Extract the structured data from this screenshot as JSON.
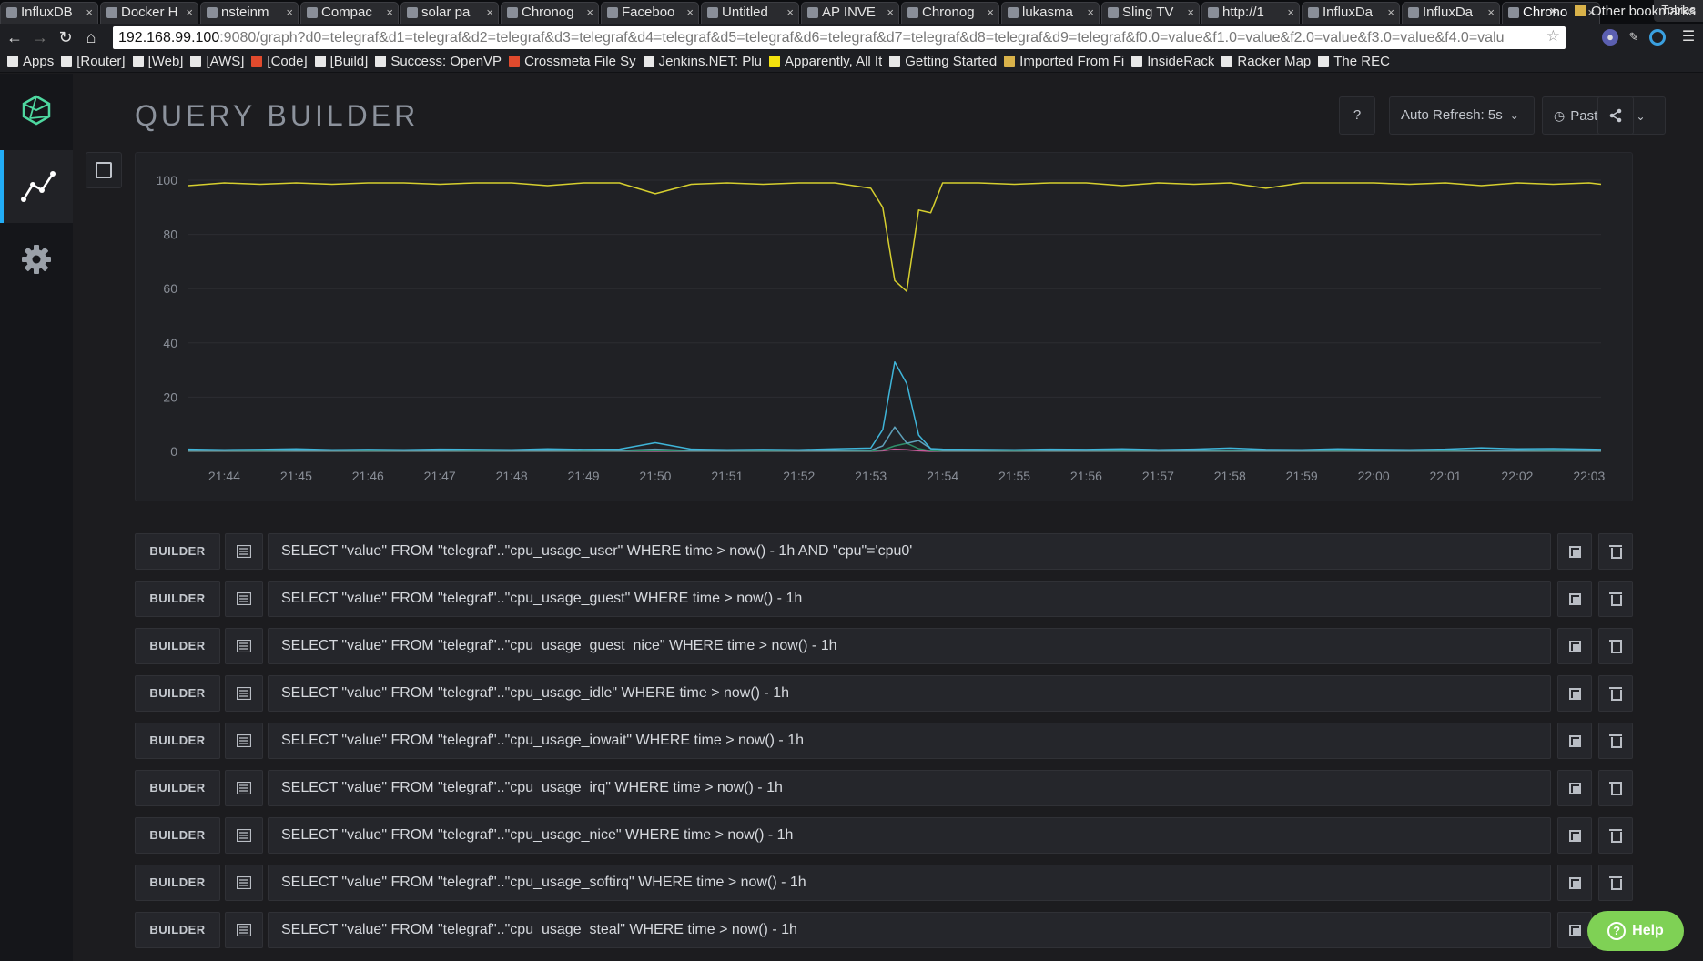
{
  "browser": {
    "tabs": [
      {
        "label": "InfluxDB"
      },
      {
        "label": "Docker H"
      },
      {
        "label": "nsteinm"
      },
      {
        "label": "Compac"
      },
      {
        "label": "solar pa"
      },
      {
        "label": "Chronog"
      },
      {
        "label": "Faceboo"
      },
      {
        "label": "Untitled"
      },
      {
        "label": "AP INVE"
      },
      {
        "label": "Chronog"
      },
      {
        "label": "lukasma"
      },
      {
        "label": "Sling TV"
      },
      {
        "label": "http://1"
      },
      {
        "label": "InfluxDa"
      },
      {
        "label": "InfluxDa"
      },
      {
        "label": "Chrono"
      }
    ],
    "profile_name": "Tobias",
    "address_host": "192.168.99.100",
    "address_rest": ":9080/graph?d0=telegraf&d1=telegraf&d2=telegraf&d3=telegraf&d4=telegraf&d5=telegraf&d6=telegraf&d7=telegraf&d8=telegraf&d9=telegraf&f0.0=value&f1.0=value&f2.0=value&f3.0=value&f4.0=valu",
    "bookmarks": [
      {
        "label": "Apps",
        "icon": "apps-grid-icon"
      },
      {
        "label": "[Router]",
        "icon": "page-icon"
      },
      {
        "label": "[Web]",
        "icon": "page-icon"
      },
      {
        "label": "[AWS]",
        "icon": "box-icon"
      },
      {
        "label": "[Code]",
        "icon": "code-icon"
      },
      {
        "label": "[Build]",
        "icon": "jenkins-icon"
      },
      {
        "label": "Success: OpenVP",
        "icon": "openvpn-icon"
      },
      {
        "label": "Crossmeta File Sy",
        "icon": "crossmeta-icon"
      },
      {
        "label": "Jenkins.NET: Plu",
        "icon": "jenkins-icon"
      },
      {
        "label": "Apparently, All It",
        "icon": "yellow-square-icon"
      },
      {
        "label": "Getting Started",
        "icon": "firefox-icon"
      },
      {
        "label": "Imported From Fi",
        "icon": "folder-icon"
      },
      {
        "label": "InsideRack",
        "icon": "insiderack-icon"
      },
      {
        "label": "Racker Map",
        "icon": "page-icon"
      },
      {
        "label": "The REC",
        "icon": "page-icon"
      }
    ],
    "bookmarks_overflow": "»",
    "other_bookmarks": "Other bookmarks"
  },
  "header": {
    "title": "QUERY BUILDER",
    "help_label": "?",
    "auto_refresh_label": "Auto Refresh: 5s",
    "time_range_label": "Past hour"
  },
  "chart_data": {
    "type": "line",
    "x": [
      "21:43:30",
      "21:44",
      "21:44:30",
      "21:45",
      "21:45:30",
      "21:46",
      "21:46:30",
      "21:47",
      "21:47:30",
      "21:48",
      "21:48:30",
      "21:49",
      "21:49:30",
      "21:50",
      "21:50:30",
      "21:51",
      "21:51:30",
      "21:52",
      "21:52:30",
      "21:53",
      "21:53:10",
      "21:53:20",
      "21:53:30",
      "21:53:40",
      "21:53:50",
      "21:54",
      "21:54:30",
      "21:55",
      "21:55:30",
      "21:56",
      "21:56:30",
      "21:57",
      "21:57:30",
      "21:58",
      "21:58:30",
      "21:59",
      "21:59:30",
      "22:00",
      "22:00:30",
      "22:01",
      "22:01:30",
      "22:02",
      "22:02:30",
      "22:03",
      "22:03:10"
    ],
    "series": [
      {
        "color": "#d6cf2f",
        "values": [
          98,
          99,
          98.5,
          99,
          98.5,
          99,
          99,
          98.5,
          99,
          99,
          98,
          99,
          99,
          95,
          98.5,
          99,
          98.5,
          99,
          99,
          97,
          90,
          63,
          59,
          89,
          88,
          99,
          99,
          98.5,
          99,
          99,
          98,
          99,
          98.5,
          99,
          97,
          99,
          99,
          99,
          98.5,
          99,
          98,
          99,
          98.5,
          99,
          98.5
        ]
      },
      {
        "color": "#3fb5d9",
        "values": [
          0.8,
          0.6,
          0.7,
          0.9,
          0.6,
          0.7,
          0.6,
          0.8,
          0.7,
          0.6,
          0.9,
          0.7,
          0.8,
          3.2,
          0.8,
          0.6,
          0.7,
          0.6,
          0.9,
          1.2,
          8,
          33,
          25,
          6,
          1,
          0.8,
          0.7,
          0.6,
          0.8,
          0.7,
          0.9,
          0.6,
          0.8,
          1.2,
          0.7,
          0.6,
          0.9,
          0.7,
          0.6,
          0.8,
          1.3,
          0.9,
          1,
          0.8,
          0.7
        ]
      },
      {
        "color": "#5ea0b9",
        "values": [
          0.3,
          0.3,
          0.4,
          0.3,
          0.3,
          0.4,
          0.3,
          0.3,
          0.4,
          0.3,
          0.3,
          0.4,
          0.3,
          0.8,
          0.3,
          0.3,
          0.4,
          0.3,
          0.3,
          0.4,
          2,
          9,
          3,
          4,
          1,
          0.3,
          0.3,
          0.4,
          0.3,
          0.3,
          0.4,
          0.3,
          0.3,
          0.4,
          0.3,
          0.3,
          0.4,
          0.3,
          0.3,
          0.4,
          0.3,
          0.3,
          0.4,
          0.3,
          0.3
        ]
      },
      {
        "color": "#2f8f6a",
        "values": [
          0.1,
          0.1,
          0.1,
          0.1,
          0.1,
          0.1,
          0.1,
          0.1,
          0.1,
          0.1,
          0.1,
          0.1,
          0.1,
          0.2,
          0.1,
          0.1,
          0.1,
          0.1,
          0.1,
          0.1,
          0.5,
          2,
          3,
          1,
          0.2,
          0.1,
          0.1,
          0.1,
          0.1,
          0.1,
          0.1,
          0.1,
          0.1,
          0.1,
          0.1,
          0.1,
          0.1,
          0.1,
          0.1,
          0.1,
          0.1,
          0.1,
          0.1,
          0.1,
          0.1
        ]
      },
      {
        "color": "#c85a9a",
        "values": [
          0,
          0,
          0,
          0,
          0,
          0,
          0,
          0,
          0,
          0,
          0,
          0,
          0,
          0,
          0,
          0,
          0,
          0,
          0,
          0,
          0.2,
          0.8,
          0.6,
          0.2,
          0,
          0,
          0,
          0,
          0,
          0,
          0,
          0,
          0,
          0,
          0,
          0,
          0,
          0,
          0,
          0,
          0,
          0,
          0,
          0,
          0
        ]
      }
    ],
    "y_ticks": [
      "100",
      "80",
      "60",
      "40",
      "20",
      "0"
    ],
    "x_ticks": [
      "21:44",
      "21:45",
      "21:46",
      "21:47",
      "21:48",
      "21:49",
      "21:50",
      "21:51",
      "21:52",
      "21:53",
      "21:54",
      "21:55",
      "21:56",
      "21:57",
      "21:58",
      "21:59",
      "22:00",
      "22:01",
      "22:02",
      "22:03"
    ],
    "ylim": [
      0,
      100
    ],
    "grid": true
  },
  "queries": [
    {
      "builder_label": "BUILDER",
      "text": "SELECT \"value\" FROM \"telegraf\"..\"cpu_usage_user\" WHERE time > now() - 1h AND \"cpu\"='cpu0'"
    },
    {
      "builder_label": "BUILDER",
      "text": "SELECT \"value\" FROM \"telegraf\"..\"cpu_usage_guest\" WHERE time > now() - 1h"
    },
    {
      "builder_label": "BUILDER",
      "text": "SELECT \"value\" FROM \"telegraf\"..\"cpu_usage_guest_nice\" WHERE time > now() - 1h"
    },
    {
      "builder_label": "BUILDER",
      "text": "SELECT \"value\" FROM \"telegraf\"..\"cpu_usage_idle\" WHERE time > now() - 1h"
    },
    {
      "builder_label": "BUILDER",
      "text": "SELECT \"value\" FROM \"telegraf\"..\"cpu_usage_iowait\" WHERE time > now() - 1h"
    },
    {
      "builder_label": "BUILDER",
      "text": "SELECT \"value\" FROM \"telegraf\"..\"cpu_usage_irq\" WHERE time > now() - 1h"
    },
    {
      "builder_label": "BUILDER",
      "text": "SELECT \"value\" FROM \"telegraf\"..\"cpu_usage_nice\" WHERE time > now() - 1h"
    },
    {
      "builder_label": "BUILDER",
      "text": "SELECT \"value\" FROM \"telegraf\"..\"cpu_usage_softirq\" WHERE time > now() - 1h"
    },
    {
      "builder_label": "BUILDER",
      "text": "SELECT \"value\" FROM \"telegraf\"..\"cpu_usage_steal\" WHERE time > now() - 1h"
    }
  ],
  "help_button_label": "Help",
  "colors": {
    "accent": "#22adf6",
    "help": "#7fd155",
    "logo": "#4ed8a0"
  }
}
